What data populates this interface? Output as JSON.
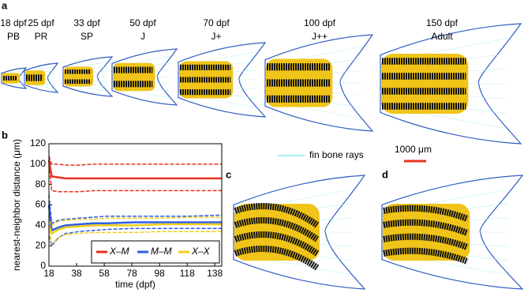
{
  "figure": {
    "panel_labels": [
      "a",
      "b",
      "c",
      "d"
    ],
    "stages": [
      {
        "age": "18 dpf",
        "label": "PB"
      },
      {
        "age": "25 dpf",
        "label": "PR"
      },
      {
        "age": "33 dpf",
        "label": "SP"
      },
      {
        "age": "50 dpf",
        "label": "J"
      },
      {
        "age": "70 dpf",
        "label": "J+"
      },
      {
        "age": "100 dpf",
        "label": "J++"
      },
      {
        "age": "150 dpf",
        "label": "Adult"
      }
    ],
    "rays_legend": "fin bone rays",
    "scale_bar": "1000 μm"
  },
  "chart_data": {
    "type": "line",
    "xlabel": "time (dpf)",
    "ylabel": "nearest-neighbor distance (μm)",
    "x": [
      18,
      20,
      25,
      30,
      40,
      50,
      60,
      80,
      100,
      120,
      143
    ],
    "xlim": [
      18,
      143
    ],
    "xticks": [
      18,
      38,
      58,
      78,
      98,
      118,
      138
    ],
    "ylim": [
      0,
      120
    ],
    "yticks": [
      0,
      20,
      40,
      60,
      80,
      100,
      120
    ],
    "legend": "lower right",
    "series": [
      {
        "name": "X–M",
        "color": "#e8321f",
        "values": [
          104,
          88,
          87,
          86,
          86,
          86,
          86,
          86,
          86,
          86,
          86
        ],
        "upper": [
          108,
          100,
          100,
          99,
          99,
          100,
          100,
          100,
          100,
          100,
          100
        ],
        "lower": [
          100,
          74,
          73,
          73,
          73,
          74,
          74,
          74,
          74,
          74,
          74
        ]
      },
      {
        "name": "M–M",
        "color": "#2f5fe0",
        "values": [
          60,
          35,
          38,
          40,
          41,
          42,
          42,
          43,
          43,
          43,
          43
        ],
        "upper": [
          70,
          42,
          45,
          46,
          47,
          48,
          49,
          49,
          49,
          49,
          50
        ],
        "lower": [
          30,
          20,
          28,
          32,
          34,
          35,
          36,
          37,
          37,
          37,
          37
        ]
      },
      {
        "name": "X–X",
        "color": "#f2cc1a",
        "values": [
          40,
          32,
          36,
          38,
          39,
          40,
          40,
          40,
          41,
          41,
          41
        ],
        "upper": [
          45,
          40,
          44,
          45,
          46,
          46,
          47,
          47,
          47,
          48,
          48
        ],
        "lower": [
          35,
          22,
          28,
          31,
          32,
          33,
          33,
          33,
          34,
          34,
          34
        ]
      }
    ]
  }
}
